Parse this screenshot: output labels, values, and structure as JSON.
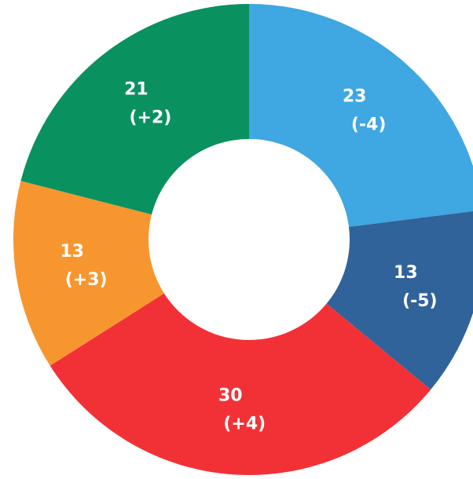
{
  "chart_data": {
    "type": "donut",
    "categories": [
      null,
      null,
      null,
      null,
      null
    ],
    "values": [
      23,
      13,
      30,
      13,
      21
    ],
    "change_labels": [
      "(-4)",
      "(-5)",
      "(+4)",
      "(+3)",
      "(+2)"
    ],
    "colors": [
      "#3fa7e1",
      "#30639a",
      "#f23137",
      "#f7962f",
      "#0a9160"
    ]
  }
}
